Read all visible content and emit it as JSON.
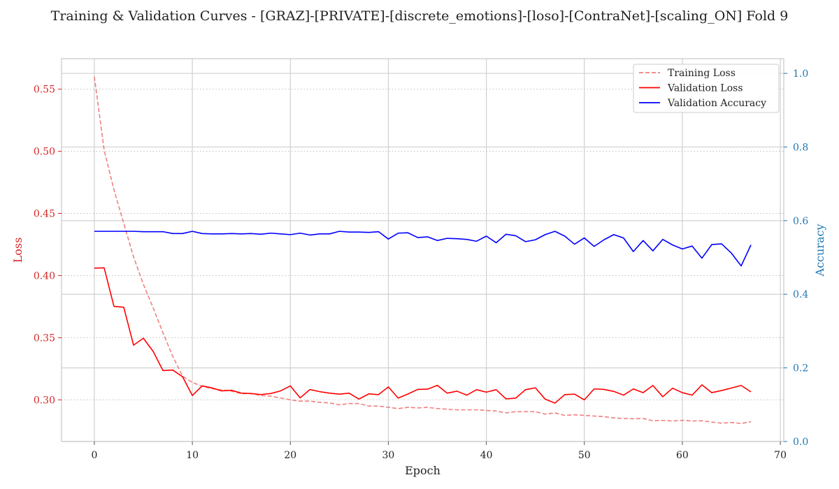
{
  "chart_data": {
    "type": "line",
    "title": "Training & Validation Curves - [GRAZ]-[PRIVATE]-[discrete_emotions]-[loso]-[ContraNet]-[scaling_ON] Fold 9",
    "xlabel": "Epoch",
    "ylabel_left": "Loss",
    "ylabel_right": "Accuracy",
    "xlim": [
      -3.35,
      70.35
    ],
    "ylim_left": [
      0.2665,
      0.5745
    ],
    "ylim_right": [
      0.0,
      1.04
    ],
    "xticks": [
      0,
      10,
      20,
      30,
      40,
      50,
      60,
      70
    ],
    "yticks_left": [
      0.3,
      0.35,
      0.4,
      0.45,
      0.5,
      0.55
    ],
    "yticks_right": [
      0.0,
      0.2,
      0.4,
      0.6,
      0.8,
      1.0
    ],
    "grid": true,
    "legend_position": "top-right",
    "colors": {
      "training_loss": "#f08080",
      "validation_loss": "#ff0000",
      "validation_accuracy": "#0000ff",
      "left_axis": "#d62728",
      "right_axis": "#1f77b4"
    },
    "series": [
      {
        "name": "Training Loss",
        "axis": "left",
        "style": "dashed",
        "x": [
          0,
          1,
          2,
          3,
          4,
          5,
          6,
          7,
          8,
          9,
          10,
          11,
          12,
          13,
          14,
          15,
          16,
          17,
          18,
          19,
          20,
          21,
          22,
          23,
          24,
          25,
          26,
          27,
          28,
          29,
          30,
          31,
          32,
          33,
          34,
          35,
          36,
          37,
          38,
          39,
          40,
          41,
          42,
          43,
          44,
          45,
          46,
          47,
          48,
          49,
          50,
          51,
          52,
          53,
          54,
          55,
          56,
          57,
          58,
          59,
          60,
          61,
          62,
          63,
          64,
          65,
          66,
          67
        ],
        "values": [
          0.56,
          0.501,
          0.469,
          0.442,
          0.415,
          0.393,
          0.374,
          0.354,
          0.335,
          0.319,
          0.314,
          0.311,
          0.309,
          0.308,
          0.307,
          0.305,
          0.305,
          0.3035,
          0.303,
          0.3015,
          0.3,
          0.299,
          0.299,
          0.298,
          0.2975,
          0.296,
          0.297,
          0.297,
          0.295,
          0.295,
          0.294,
          0.293,
          0.294,
          0.2935,
          0.294,
          0.293,
          0.2925,
          0.292,
          0.292,
          0.292,
          0.2915,
          0.291,
          0.2895,
          0.2905,
          0.2905,
          0.2905,
          0.2885,
          0.2895,
          0.2875,
          0.288,
          0.2875,
          0.287,
          0.2865,
          0.2855,
          0.285,
          0.2848,
          0.285,
          0.2832,
          0.2835,
          0.283,
          0.2835,
          0.283,
          0.2832,
          0.2822,
          0.2812,
          0.2818,
          0.281,
          0.2825
        ]
      },
      {
        "name": "Validation Loss",
        "axis": "left",
        "style": "solid",
        "x": [
          0,
          1,
          2,
          3,
          4,
          5,
          6,
          7,
          8,
          9,
          10,
          11,
          12,
          13,
          14,
          15,
          16,
          17,
          18,
          19,
          20,
          21,
          22,
          23,
          24,
          25,
          26,
          27,
          28,
          29,
          30,
          31,
          32,
          33,
          34,
          35,
          36,
          37,
          38,
          39,
          40,
          41,
          42,
          43,
          44,
          45,
          46,
          47,
          48,
          49,
          50,
          51,
          52,
          53,
          54,
          55,
          56,
          57,
          58,
          59,
          60,
          61,
          62,
          63,
          64,
          65,
          66,
          67
        ],
        "values": [
          0.406,
          0.4062,
          0.3752,
          0.3745,
          0.344,
          0.3496,
          0.339,
          0.3236,
          0.324,
          0.3186,
          0.3035,
          0.3112,
          0.3096,
          0.3072,
          0.3077,
          0.3054,
          0.3051,
          0.3043,
          0.3051,
          0.3072,
          0.3112,
          0.3016,
          0.3083,
          0.3066,
          0.3054,
          0.3046,
          0.3054,
          0.3006,
          0.3048,
          0.3042,
          0.3104,
          0.3014,
          0.3047,
          0.3084,
          0.3086,
          0.3117,
          0.3054,
          0.307,
          0.3038,
          0.3082,
          0.3062,
          0.3082,
          0.3008,
          0.3014,
          0.3082,
          0.3097,
          0.3006,
          0.2974,
          0.3042,
          0.3046,
          0.3,
          0.3088,
          0.3084,
          0.3068,
          0.3038,
          0.3088,
          0.3058,
          0.3116,
          0.3025,
          0.3094,
          0.3058,
          0.3038,
          0.3121,
          0.3058,
          0.3075,
          0.3095,
          0.3116,
          0.3064
        ]
      },
      {
        "name": "Validation Accuracy",
        "axis": "right",
        "style": "solid",
        "x": [
          0,
          1,
          2,
          3,
          4,
          5,
          6,
          7,
          8,
          9,
          10,
          11,
          12,
          13,
          14,
          15,
          16,
          17,
          18,
          19,
          20,
          21,
          22,
          23,
          24,
          25,
          26,
          27,
          28,
          29,
          30,
          31,
          32,
          33,
          34,
          35,
          36,
          37,
          38,
          39,
          40,
          41,
          42,
          43,
          44,
          45,
          46,
          47,
          48,
          49,
          50,
          51,
          52,
          53,
          54,
          55,
          56,
          57,
          58,
          59,
          60,
          61,
          62,
          63,
          64,
          65,
          66,
          67
        ],
        "values": [
          0.571,
          0.571,
          0.571,
          0.571,
          0.571,
          0.57,
          0.57,
          0.57,
          0.565,
          0.565,
          0.571,
          0.565,
          0.564,
          0.564,
          0.565,
          0.564,
          0.565,
          0.563,
          0.566,
          0.564,
          0.562,
          0.566,
          0.561,
          0.564,
          0.564,
          0.571,
          0.569,
          0.569,
          0.568,
          0.57,
          0.55,
          0.566,
          0.567,
          0.554,
          0.556,
          0.546,
          0.552,
          0.551,
          0.549,
          0.544,
          0.558,
          0.54,
          0.563,
          0.559,
          0.543,
          0.548,
          0.562,
          0.571,
          0.558,
          0.536,
          0.553,
          0.53,
          0.548,
          0.562,
          0.553,
          0.516,
          0.546,
          0.518,
          0.549,
          0.534,
          0.523,
          0.531,
          0.498,
          0.535,
          0.537,
          0.512,
          0.477,
          0.534
        ]
      }
    ]
  }
}
